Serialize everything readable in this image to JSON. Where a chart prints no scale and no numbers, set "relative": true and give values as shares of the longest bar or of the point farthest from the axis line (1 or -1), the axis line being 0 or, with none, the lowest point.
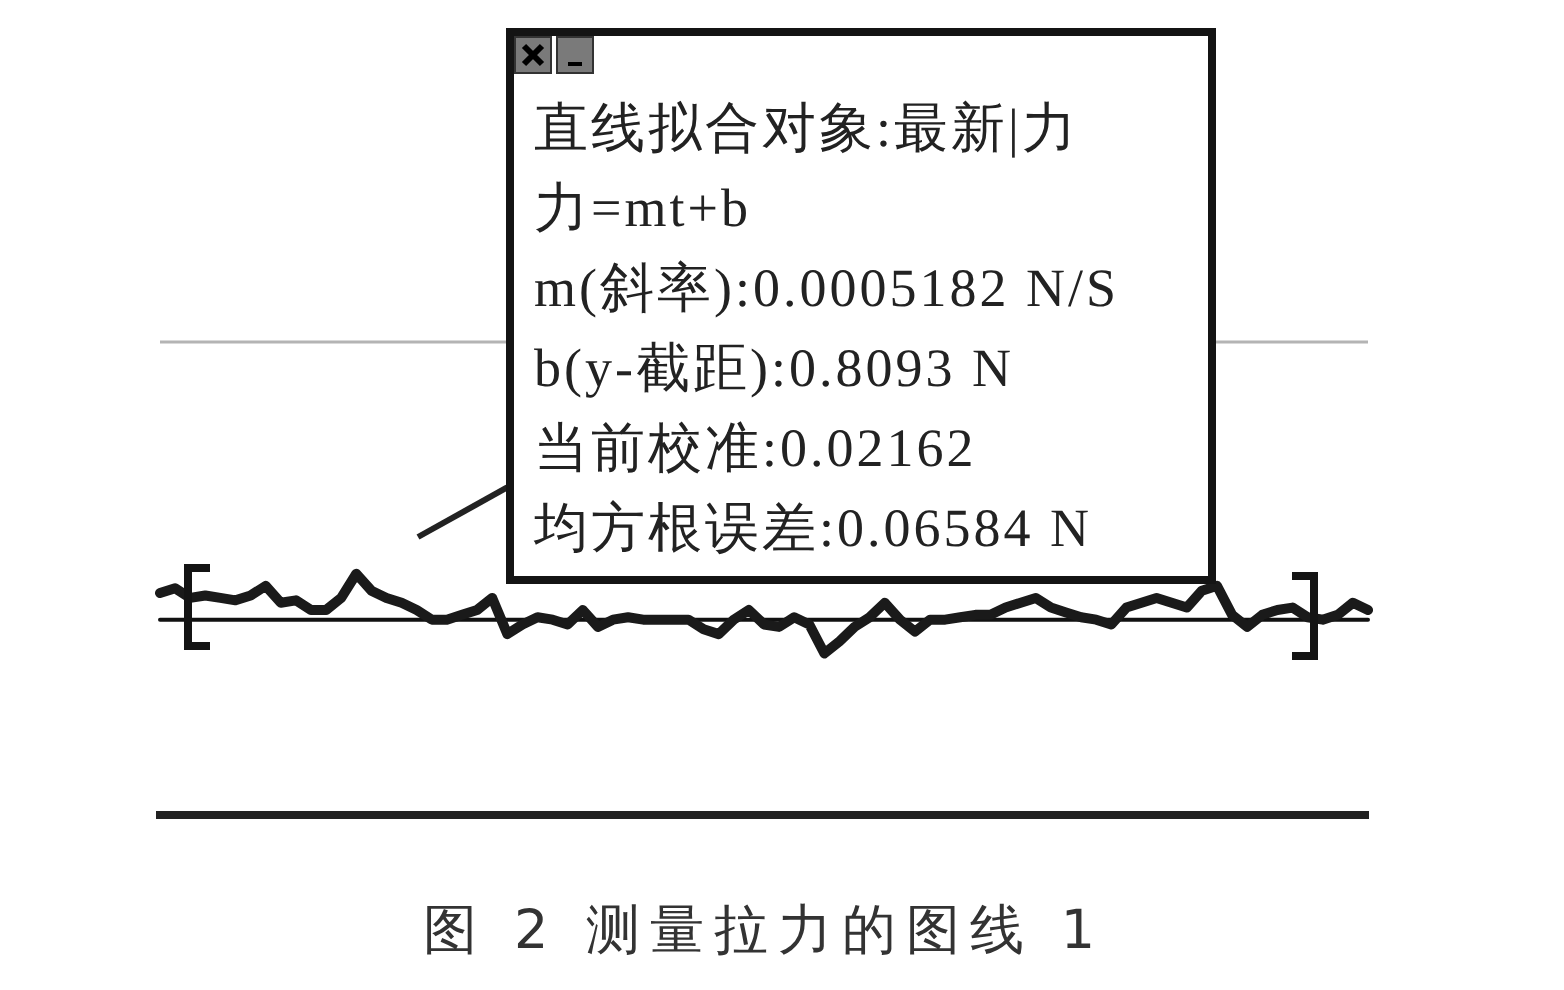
{
  "chart_data": {
    "type": "line",
    "title": "图 2 测量拉力的图线 1",
    "relative": true,
    "categories": [
      null,
      null,
      null,
      null,
      null,
      null,
      null,
      null,
      null,
      null,
      null,
      null,
      null,
      null,
      null,
      null,
      null,
      null,
      null,
      null,
      null,
      null,
      null,
      null,
      null,
      null,
      null,
      null,
      null,
      null,
      null,
      null,
      null,
      null,
      null,
      null,
      null,
      null,
      null,
      null,
      null,
      null,
      null,
      null,
      null,
      null,
      null,
      null,
      null,
      null,
      null,
      null,
      null,
      null,
      null,
      null,
      null,
      null,
      null,
      null,
      null,
      null,
      null,
      null,
      null,
      null,
      null,
      null,
      null,
      null,
      null,
      null,
      null,
      null,
      null,
      null,
      null,
      null,
      null,
      null,
      null
    ],
    "series": [
      {
        "color": "#1a1a1a",
        "values": [
          0.92,
          0.94,
          0.9,
          0.91,
          0.9,
          0.89,
          0.91,
          0.95,
          0.88,
          0.89,
          0.85,
          0.85,
          0.9,
          1.0,
          0.93,
          0.9,
          0.88,
          0.85,
          0.81,
          0.81,
          0.83,
          0.85,
          0.9,
          0.75,
          0.79,
          0.82,
          0.81,
          0.79,
          0.85,
          0.78,
          0.81,
          0.82,
          0.81,
          0.81,
          0.81,
          0.81,
          0.77,
          0.75,
          0.81,
          0.85,
          0.79,
          0.78,
          0.82,
          0.79,
          0.67,
          0.72,
          0.78,
          0.82,
          0.88,
          0.81,
          0.76,
          0.81,
          0.81,
          0.82,
          0.83,
          0.83,
          0.86,
          0.88,
          0.9,
          0.86,
          0.84,
          0.82,
          0.81,
          0.79,
          0.86,
          0.88,
          0.9,
          0.88,
          0.86,
          0.93,
          0.95,
          0.83,
          0.78,
          0.83,
          0.85,
          0.86,
          0.82,
          0.81,
          0.83,
          0.88,
          0.85
        ]
      },
      {
        "type": "line",
        "color": "#111111",
        "values": [
          0.81,
          0.81,
          0.81,
          0.81,
          0.81,
          0.81,
          0.81,
          0.81,
          0.81,
          0.81,
          0.81,
          0.81,
          0.81,
          0.81,
          0.81,
          0.81,
          0.81,
          0.81,
          0.81,
          0.81,
          0.81,
          0.81,
          0.81,
          0.81,
          0.81,
          0.81,
          0.81,
          0.81,
          0.81,
          0.81,
          0.81,
          0.81,
          0.81,
          0.81,
          0.81,
          0.81,
          0.81,
          0.81,
          0.81,
          0.81,
          0.81,
          0.81,
          0.81,
          0.81,
          0.81,
          0.81,
          0.81,
          0.81,
          0.81,
          0.81,
          0.81,
          0.81,
          0.81,
          0.81,
          0.81,
          0.81,
          0.81,
          0.81,
          0.81,
          0.81,
          0.81,
          0.81,
          0.81,
          0.81,
          0.81,
          0.81,
          0.81,
          0.81,
          0.81,
          0.81,
          0.81,
          0.81,
          0.81,
          0.81,
          0.81,
          0.81,
          0.81,
          0.81,
          0.81,
          0.81,
          0.81
        ]
      }
    ],
    "ref_lines": [
      {
        "axis": "y",
        "value": 1.96,
        "color": "#b4b4b4"
      }
    ],
    "annotations": [
      "直线拟合对象:最新|力",
      "力=mt+b",
      "m(斜率):0.0005182 N/S",
      "b(y-截距):0.8093 N",
      "当前校准:0.02162",
      "均方根误差:0.06584 N"
    ]
  }
}
